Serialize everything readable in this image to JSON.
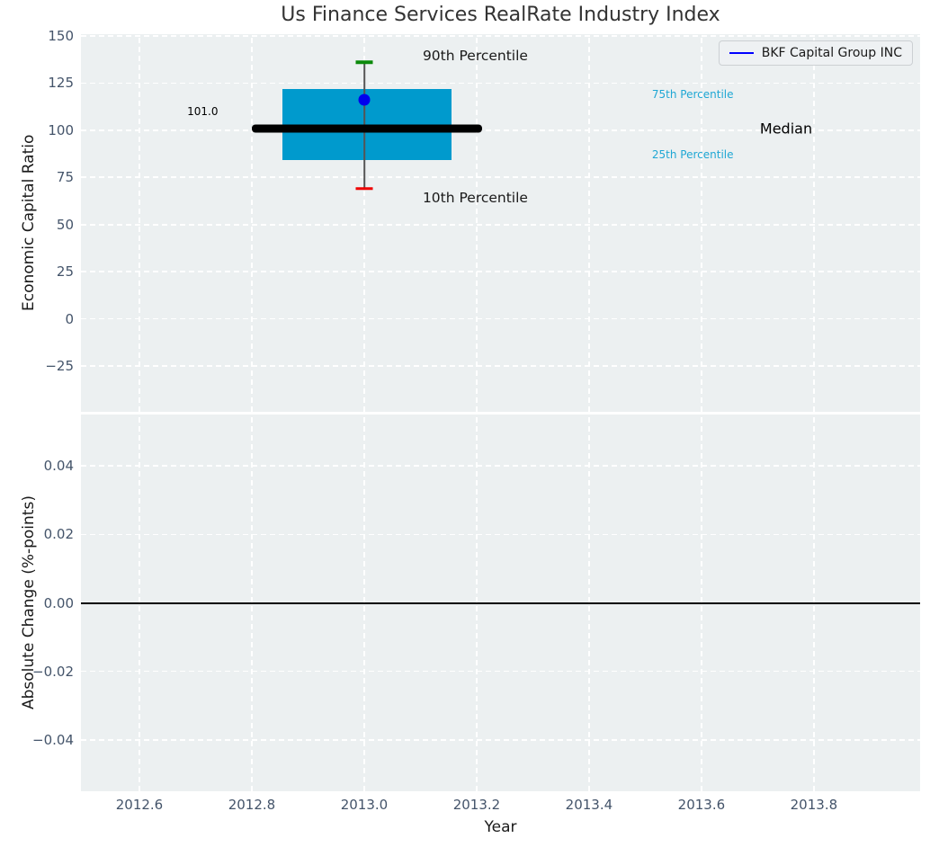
{
  "title": "Us Finance Services RealRate Industry Index",
  "legend": {
    "label": "BKF Capital Group INC",
    "line_color": "#0000ff"
  },
  "colors": {
    "figure_bg": "#ffffff",
    "plot_bg": "#ecf0f1",
    "grid": "#ffffff",
    "box_fill": "#009acd",
    "median_line": "#000000",
    "whisker": "#555555",
    "cap_90th": "#0b8a0b",
    "cap_10th": "#ee0000",
    "company_marker": "#0000ee",
    "tick_label": "#44546a",
    "axis_label": "#1a1a1a",
    "title_color": "#333333",
    "percentile_label": "#1fa7d4",
    "zero_line": "#000000"
  },
  "chart_data": [
    {
      "type": "box",
      "title": "Us Finance Services RealRate Industry Index",
      "ylabel": "Economic Capital Ratio",
      "xlim": [
        2012.496,
        2013.989
      ],
      "ylim": [
        -49.3,
        150.95
      ],
      "grid": true,
      "legend_entries": [
        "BKF Capital Group INC"
      ],
      "legend_position": "upper right",
      "yticks": [
        {
          "value": 150,
          "label": "150"
        },
        {
          "value": 125,
          "label": "125"
        },
        {
          "value": 100,
          "label": "100"
        },
        {
          "value": 75,
          "label": "75"
        },
        {
          "value": 50,
          "label": "50"
        },
        {
          "value": 25,
          "label": "25"
        },
        {
          "value": 0,
          "label": "0"
        },
        {
          "value": -25,
          "label": "−25"
        }
      ],
      "xticks": [
        {
          "value": 2012.6,
          "label": ""
        },
        {
          "value": 2012.8,
          "label": ""
        },
        {
          "value": 2013.0,
          "label": ""
        },
        {
          "value": 2013.2,
          "label": ""
        },
        {
          "value": 2013.4,
          "label": ""
        },
        {
          "value": 2013.6,
          "label": ""
        },
        {
          "value": 2013.8,
          "label": ""
        }
      ],
      "box": {
        "x_center": 2013.0,
        "box_x_range": [
          2012.855,
          2013.155
        ],
        "median_x_range": [
          2012.8,
          2013.21
        ],
        "p10": 69,
        "p25": 84,
        "median": 101.0,
        "p75": 122,
        "p90": 136,
        "median_value_label": "101.0"
      },
      "company_point": {
        "name": "BKF Capital Group INC",
        "x": 2013.0,
        "y": 116
      },
      "annotations": [
        {
          "id": "p90-label",
          "text": "90th Percentile",
          "x": 2013.104,
          "y": 139.5,
          "color": "#1a1a1a",
          "cls": "ann-lg"
        },
        {
          "id": "p10-label",
          "text": "10th Percentile",
          "x": 2013.104,
          "y": 64.0,
          "color": "#1a1a1a",
          "cls": "ann-lg"
        },
        {
          "id": "p75-label",
          "text": "75th Percentile",
          "x": 2013.512,
          "y": 119.0,
          "color": "#1fa7d4",
          "cls": "ann-sm"
        },
        {
          "id": "p25-label",
          "text": "25th Percentile",
          "x": 2013.512,
          "y": 87.0,
          "color": "#1fa7d4",
          "cls": "ann-sm"
        },
        {
          "id": "median-label",
          "text": "Median",
          "x": 2013.704,
          "y": 101.0,
          "color": "#000000",
          "cls": "ann-md"
        },
        {
          "id": "median-value-label",
          "text": "101.0",
          "x": 2012.685,
          "y": 110.0,
          "color": "#000000",
          "cls": "ann-xs"
        }
      ]
    },
    {
      "type": "line",
      "ylabel": "Absolute Change (%-points)",
      "xlabel": "Year",
      "xlim": [
        2012.496,
        2013.989
      ],
      "ylim": [
        -0.055,
        0.055
      ],
      "grid": true,
      "zero_line": 0.0,
      "series": [],
      "yticks": [
        {
          "value": 0.04,
          "label": "0.04"
        },
        {
          "value": 0.02,
          "label": "0.02"
        },
        {
          "value": 0.0,
          "label": "0.00"
        },
        {
          "value": -0.02,
          "label": "−0.02"
        },
        {
          "value": -0.04,
          "label": "−0.04"
        }
      ],
      "xticks": [
        {
          "value": 2012.6,
          "label": "2012.6"
        },
        {
          "value": 2012.8,
          "label": "2012.8"
        },
        {
          "value": 2013.0,
          "label": "2013.0"
        },
        {
          "value": 2013.2,
          "label": "2013.2"
        },
        {
          "value": 2013.4,
          "label": "2013.4"
        },
        {
          "value": 2013.6,
          "label": "2013.6"
        },
        {
          "value": 2013.8,
          "label": "2013.8"
        }
      ]
    }
  ]
}
